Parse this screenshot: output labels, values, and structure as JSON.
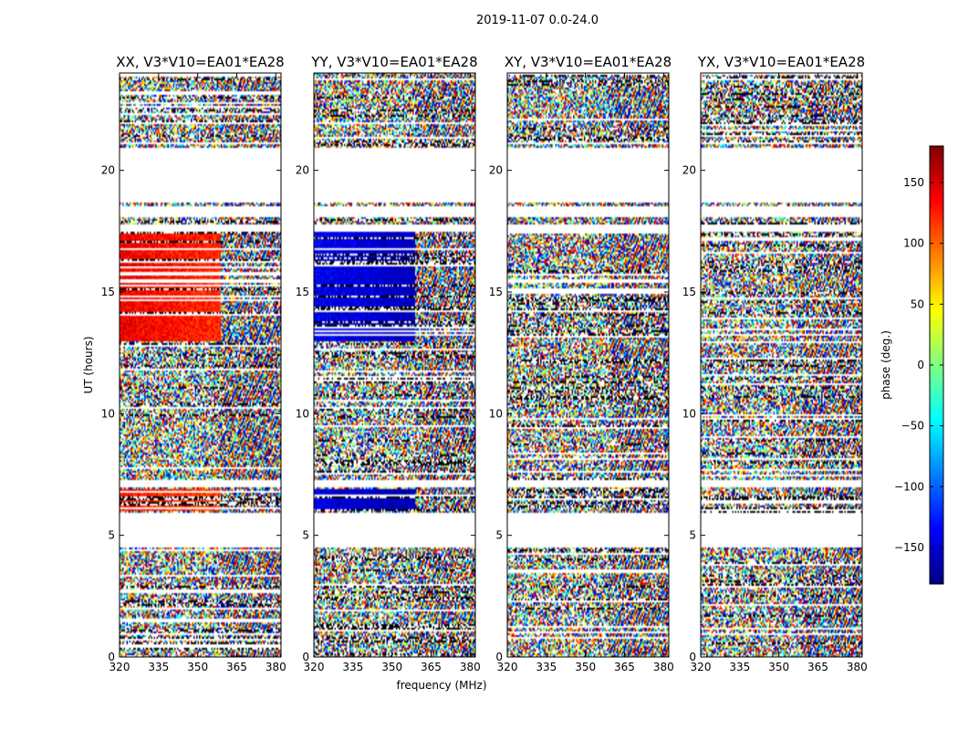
{
  "chart_data": {
    "type": "heatmap",
    "suptitle": "2019-11-07 0.0-24.0",
    "xlabel": "frequency (MHz)",
    "ylabel": "UT (hours)",
    "xlim": [
      320,
      382
    ],
    "ylim": [
      0,
      24
    ],
    "xticks": [
      320,
      335,
      350,
      365,
      380
    ],
    "xtick_labels": [
      "320",
      "335",
      "350",
      "365",
      "380"
    ],
    "yticks": [
      0,
      5,
      10,
      15,
      20
    ],
    "ytick_labels": [
      "0",
      "5",
      "10",
      "15",
      "20"
    ],
    "panels": [
      {
        "title": "XX, V3*V10=EA01*EA28",
        "smooth_phase_13_17_5h": 140,
        "smooth_phase_6_6_9h": 130
      },
      {
        "title": "YY, V3*V10=EA01*EA28",
        "smooth_phase_13_17_5h": -140,
        "smooth_phase_6_6_9h": -145
      },
      {
        "title": "XY, V3*V10=EA01*EA28",
        "smooth_phase_13_17_5h": null,
        "smooth_phase_6_6_9h": null
      },
      {
        "title": "YX, V3*V10=EA01*EA28",
        "smooth_phase_13_17_5h": null,
        "smooth_phase_6_6_9h": null
      }
    ],
    "flagged_ut_ranges": [
      [
        4.5,
        5.9
      ],
      [
        7.0,
        7.3
      ],
      [
        17.5,
        17.8
      ],
      [
        18.1,
        18.5
      ],
      [
        18.7,
        20.9
      ]
    ],
    "colorbar": {
      "label": "phase (deg.)",
      "range": [
        -180,
        180
      ],
      "ticks": [
        150,
        100,
        50,
        0,
        -50,
        -100,
        -150
      ],
      "tick_labels": [
        "150",
        "100",
        "50",
        "0",
        "−50",
        "−100",
        "−150"
      ],
      "colormap": "jet"
    }
  }
}
